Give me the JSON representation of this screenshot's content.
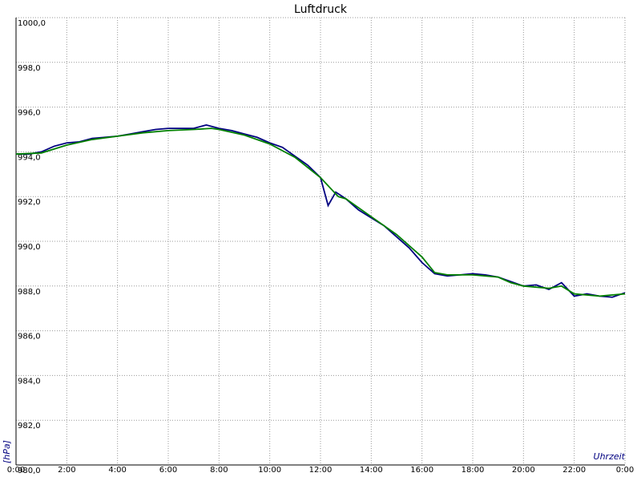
{
  "chart_data": {
    "type": "line",
    "title": "Luftdruck",
    "x_label": "Uhrzeit",
    "y_label": "[hPa]",
    "xlim": [
      0,
      24
    ],
    "ylim": [
      980,
      1000
    ],
    "grid": true,
    "xticks": [
      {
        "value": 0,
        "label": "0:00"
      },
      {
        "value": 2,
        "label": "2:00"
      },
      {
        "value": 4,
        "label": "4:00"
      },
      {
        "value": 6,
        "label": "6:00"
      },
      {
        "value": 8,
        "label": "8:00"
      },
      {
        "value": 10,
        "label": "10:00"
      },
      {
        "value": 12,
        "label": "12:00"
      },
      {
        "value": 14,
        "label": "14:00"
      },
      {
        "value": 16,
        "label": "16:00"
      },
      {
        "value": 18,
        "label": "18:00"
      },
      {
        "value": 20,
        "label": "20:00"
      },
      {
        "value": 22,
        "label": "22:00"
      },
      {
        "value": 24,
        "label": "0:00"
      }
    ],
    "yticks": [
      {
        "value": 980,
        "label": "980,0"
      },
      {
        "value": 982,
        "label": "982,0"
      },
      {
        "value": 984,
        "label": "984,0"
      },
      {
        "value": 986,
        "label": "986,0"
      },
      {
        "value": 988,
        "label": "988,0"
      },
      {
        "value": 990,
        "label": "990,0"
      },
      {
        "value": 992,
        "label": "992,0"
      },
      {
        "value": 994,
        "label": "994,0"
      },
      {
        "value": 996,
        "label": "996,0"
      },
      {
        "value": 998,
        "label": "998,0"
      },
      {
        "value": 1000,
        "label": "1000,0"
      }
    ],
    "series": [
      {
        "color": "#000080",
        "x": [
          0,
          0.5,
          1,
          1.5,
          2,
          2.5,
          3,
          3.5,
          4,
          4.5,
          5,
          5.5,
          6,
          6.5,
          7,
          7.5,
          8,
          8.5,
          9,
          9.5,
          10,
          10.5,
          11,
          11.5,
          12,
          12.3,
          12.6,
          13,
          13.5,
          14,
          14.5,
          15,
          15.5,
          16,
          16.5,
          17,
          17.5,
          18,
          18.5,
          19,
          19.5,
          20,
          20.5,
          21,
          21.5,
          22,
          22.5,
          23,
          23.5,
          24
        ],
        "values": [
          993.9,
          993.9,
          994.0,
          994.25,
          994.4,
          994.45,
          994.6,
          994.65,
          994.7,
          994.8,
          994.9,
          995.0,
          995.05,
          995.05,
          995.05,
          995.2,
          995.05,
          994.95,
          994.8,
          994.65,
          994.4,
          994.2,
          993.8,
          993.4,
          992.85,
          991.6,
          992.2,
          991.9,
          991.4,
          991.05,
          990.7,
          990.2,
          989.7,
          989.05,
          988.55,
          988.45,
          988.5,
          988.55,
          988.5,
          988.4,
          988.2,
          988.0,
          988.05,
          987.85,
          988.15,
          987.55,
          987.65,
          987.55,
          987.5,
          987.7
        ]
      },
      {
        "color": "#008000",
        "x": [
          0,
          1,
          2,
          3,
          4,
          5,
          6,
          7,
          7.7,
          8,
          9,
          10,
          11,
          12,
          12.7,
          13,
          14,
          15,
          16,
          16.5,
          17,
          18,
          19,
          19.5,
          20,
          21,
          21.5,
          22,
          23,
          24
        ],
        "values": [
          993.9,
          993.95,
          994.3,
          994.55,
          994.7,
          994.85,
          994.95,
          995.0,
          995.05,
          995.0,
          994.75,
          994.35,
          993.75,
          992.85,
          992.0,
          991.9,
          991.1,
          990.3,
          989.3,
          988.6,
          988.5,
          988.5,
          988.4,
          988.15,
          988.0,
          987.9,
          988.0,
          987.65,
          987.55,
          987.65
        ]
      }
    ]
  }
}
